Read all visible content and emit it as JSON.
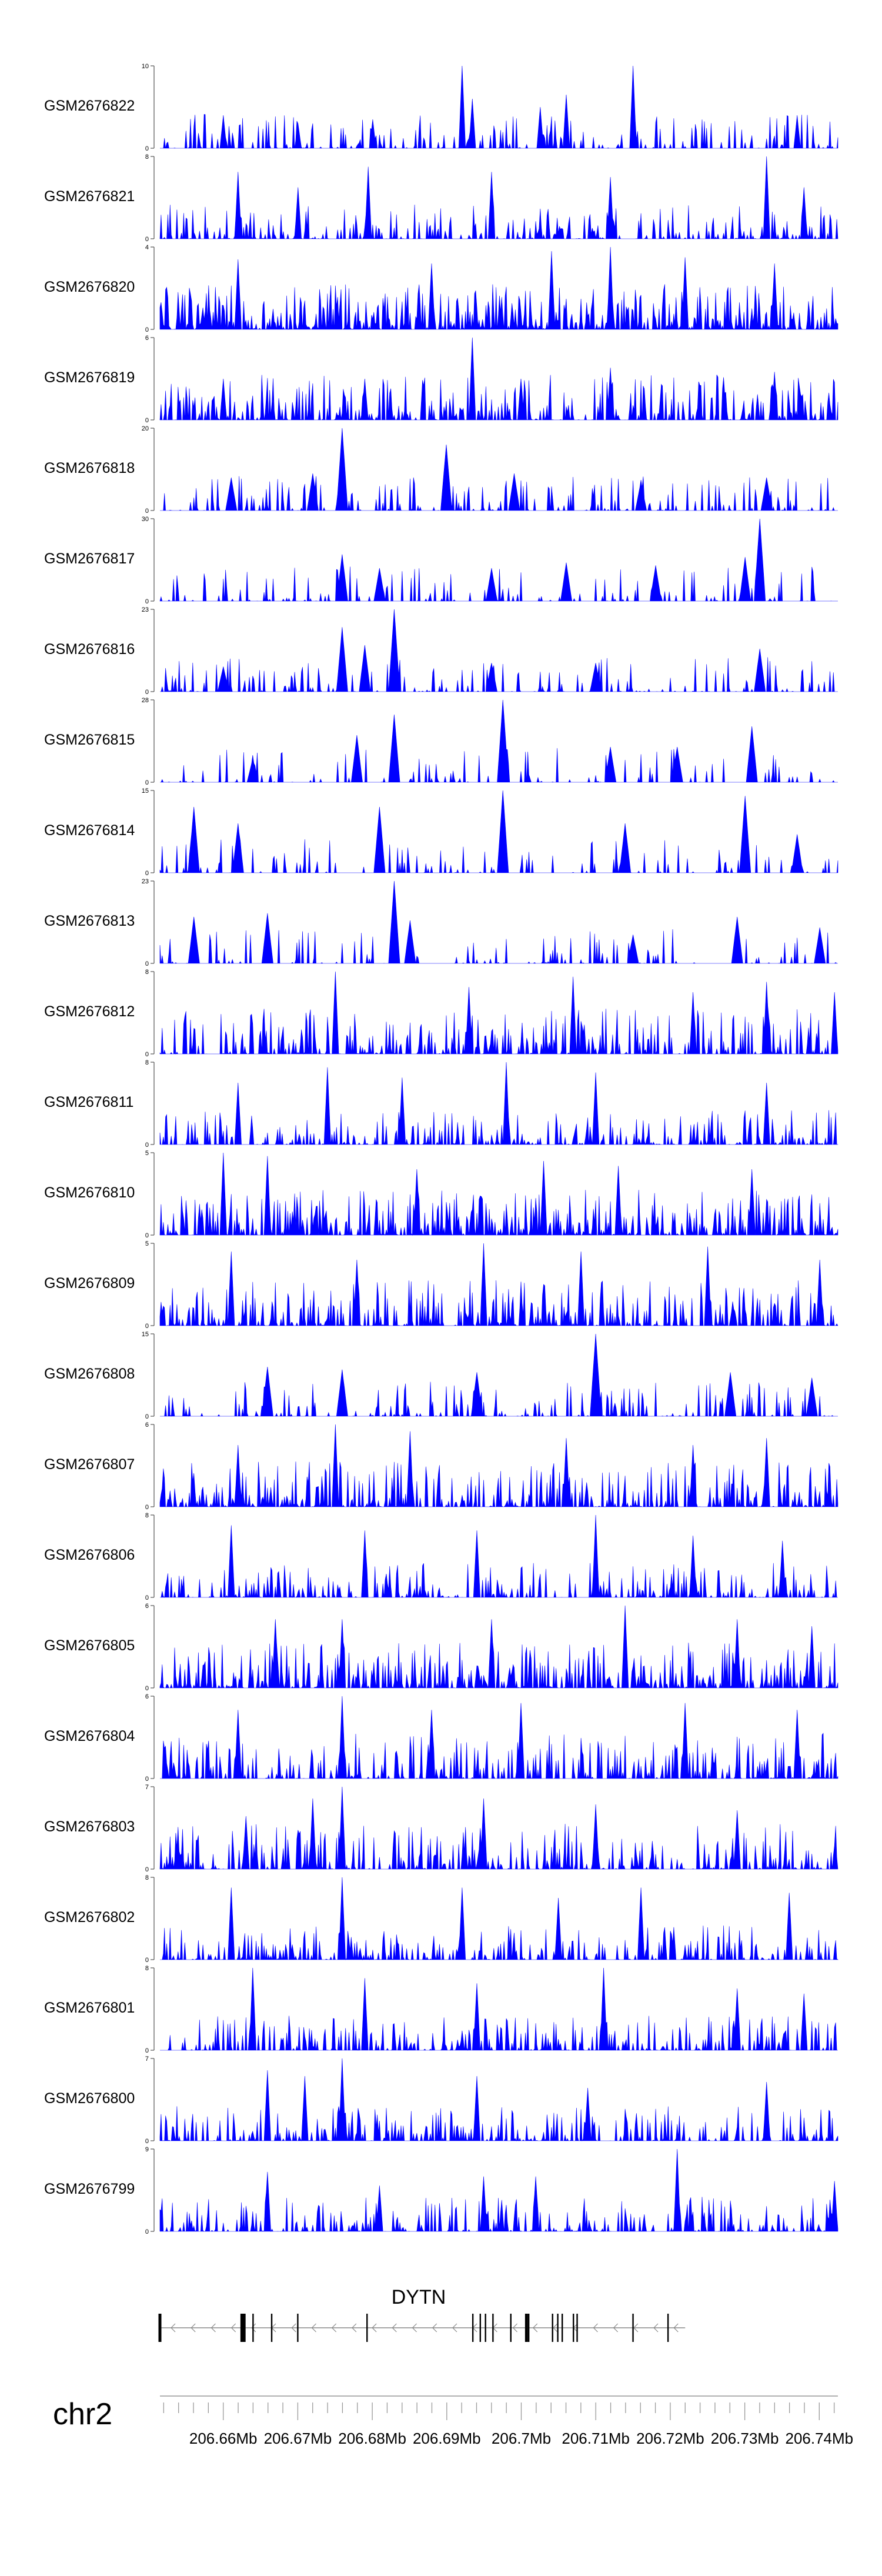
{
  "chart_data": {
    "type": "area",
    "title": "",
    "color": "#0000ff",
    "x_unit": "Mb",
    "xlim": [
      206.6515,
      206.7425
    ],
    "tracks": [
      {
        "name": "GSM2676822",
        "ymax": "10",
        "ymin": "0",
        "max": 10,
        "peaks": [
          [
            206.692,
            10
          ],
          [
            206.715,
            10
          ],
          [
            206.6935,
            6
          ],
          [
            206.706,
            6.5
          ],
          [
            206.7025,
            5
          ],
          [
            206.66,
            4
          ],
          [
            206.737,
            4
          ],
          [
            206.68,
            3.5
          ],
          [
            206.67,
            3
          ]
        ],
        "density": 0.35,
        "seed": 1
      },
      {
        "name": "GSM2676821",
        "ymax": "8",
        "ymin": "0",
        "max": 8,
        "peaks": [
          [
            206.733,
            8
          ],
          [
            206.6795,
            7
          ],
          [
            206.662,
            6.5
          ],
          [
            206.712,
            6
          ],
          [
            206.696,
            6.5
          ],
          [
            206.738,
            5
          ],
          [
            206.67,
            5
          ]
        ],
        "density": 0.45,
        "seed": 2
      },
      {
        "name": "GSM2676820",
        "ymax": "4",
        "ymin": "0",
        "max": 4,
        "peaks": [
          [
            206.712,
            4
          ],
          [
            206.704,
            3.8
          ],
          [
            206.722,
            3.5
          ],
          [
            206.662,
            3.4
          ],
          [
            206.688,
            3.2
          ],
          [
            206.734,
            3.2
          ]
        ],
        "density": 0.85,
        "seed": 3
      },
      {
        "name": "GSM2676819",
        "ymax": "6",
        "ymin": "0",
        "max": 6,
        "peaks": [
          [
            206.6935,
            6
          ],
          [
            206.712,
            3.8
          ],
          [
            206.734,
            3.5
          ],
          [
            206.66,
            3
          ],
          [
            206.679,
            3
          ],
          [
            206.7,
            3
          ]
        ],
        "density": 0.6,
        "seed": 4
      },
      {
        "name": "GSM2676818",
        "ymax": "20",
        "ymin": "0",
        "max": 20,
        "peaks": [
          [
            206.676,
            20
          ],
          [
            206.69,
            16
          ],
          [
            206.661,
            8
          ],
          [
            206.672,
            9
          ],
          [
            206.699,
            9
          ],
          [
            206.716,
            7
          ],
          [
            206.733,
            8
          ]
        ],
        "density": 0.3,
        "seed": 5
      },
      {
        "name": "GSM2676817",
        "ymax": "30",
        "ymin": "0",
        "max": 30,
        "peaks": [
          [
            206.732,
            30
          ],
          [
            206.73,
            16
          ],
          [
            206.676,
            17
          ],
          [
            206.696,
            12
          ],
          [
            206.681,
            12
          ],
          [
            206.706,
            14
          ],
          [
            206.718,
            13
          ]
        ],
        "density": 0.25,
        "seed": 6
      },
      {
        "name": "GSM2676816",
        "ymax": "23",
        "ymin": "0",
        "max": 23,
        "peaks": [
          [
            206.683,
            23
          ],
          [
            206.676,
            18
          ],
          [
            206.679,
            13
          ],
          [
            206.732,
            12
          ],
          [
            206.66,
            7
          ],
          [
            206.696,
            8
          ],
          [
            206.71,
            8
          ]
        ],
        "density": 0.3,
        "seed": 7
      },
      {
        "name": "GSM2676815",
        "ymax": "28",
        "ymin": "0",
        "max": 28,
        "peaks": [
          [
            206.6975,
            28
          ],
          [
            206.683,
            23
          ],
          [
            206.731,
            19
          ],
          [
            206.678,
            16
          ],
          [
            206.712,
            12
          ],
          [
            206.721,
            12
          ],
          [
            206.664,
            8
          ]
        ],
        "density": 0.2,
        "seed": 8
      },
      {
        "name": "GSM2676814",
        "ymax": "15",
        "ymin": "0",
        "max": 15,
        "peaks": [
          [
            206.6975,
            15
          ],
          [
            206.73,
            14
          ],
          [
            206.656,
            12
          ],
          [
            206.681,
            12
          ],
          [
            206.737,
            7
          ],
          [
            206.714,
            9
          ],
          [
            206.662,
            9
          ]
        ],
        "density": 0.25,
        "seed": 9
      },
      {
        "name": "GSM2676813",
        "ymax": "23",
        "ymin": "0",
        "max": 23,
        "peaks": [
          [
            206.683,
            23
          ],
          [
            206.666,
            14
          ],
          [
            206.656,
            13
          ],
          [
            206.685,
            12
          ],
          [
            206.729,
            13
          ],
          [
            206.74,
            10
          ],
          [
            206.715,
            8
          ]
        ],
        "density": 0.2,
        "seed": 10
      },
      {
        "name": "GSM2676812",
        "ymax": "8",
        "ymin": "0",
        "max": 8,
        "peaks": [
          [
            206.675,
            8
          ],
          [
            206.707,
            7.5
          ],
          [
            206.733,
            7
          ],
          [
            206.693,
            6.5
          ],
          [
            206.723,
            6
          ],
          [
            206.742,
            6
          ]
        ],
        "density": 0.55,
        "seed": 11
      },
      {
        "name": "GSM2676811",
        "ymax": "8",
        "ymin": "0",
        "max": 8,
        "peaks": [
          [
            206.698,
            8
          ],
          [
            206.674,
            7.5
          ],
          [
            206.71,
            7
          ],
          [
            206.684,
            6.5
          ],
          [
            206.662,
            6
          ],
          [
            206.733,
            6
          ]
        ],
        "density": 0.5,
        "seed": 12
      },
      {
        "name": "GSM2676810",
        "ymax": "5",
        "ymin": "0",
        "max": 5,
        "peaks": [
          [
            206.66,
            5
          ],
          [
            206.666,
            4.8
          ],
          [
            206.703,
            4.5
          ],
          [
            206.713,
            4.2
          ],
          [
            206.686,
            4
          ],
          [
            206.731,
            4
          ]
        ],
        "density": 0.65,
        "seed": 13
      },
      {
        "name": "GSM2676809",
        "ymax": "5",
        "ymin": "0",
        "max": 5,
        "peaks": [
          [
            206.695,
            5
          ],
          [
            206.725,
            4.8
          ],
          [
            206.661,
            4.5
          ],
          [
            206.708,
            4.5
          ],
          [
            206.678,
            4
          ],
          [
            206.74,
            4
          ]
        ],
        "density": 0.6,
        "seed": 14
      },
      {
        "name": "GSM2676808",
        "ymax": "15",
        "ymin": "0",
        "max": 15,
        "peaks": [
          [
            206.71,
            15
          ],
          [
            206.666,
            9
          ],
          [
            206.676,
            8.5
          ],
          [
            206.694,
            8
          ],
          [
            206.728,
            8
          ],
          [
            206.739,
            7
          ]
        ],
        "density": 0.25,
        "seed": 15
      },
      {
        "name": "GSM2676807",
        "ymax": "6",
        "ymin": "0",
        "max": 6,
        "peaks": [
          [
            206.675,
            6
          ],
          [
            206.685,
            5.5
          ],
          [
            206.706,
            5
          ],
          [
            206.733,
            5
          ],
          [
            206.662,
            4.5
          ],
          [
            206.723,
            4.5
          ]
        ],
        "density": 0.6,
        "seed": 16
      },
      {
        "name": "GSM2676806",
        "ymax": "8",
        "ymin": "0",
        "max": 8,
        "peaks": [
          [
            206.71,
            8
          ],
          [
            206.661,
            7
          ],
          [
            206.679,
            6.5
          ],
          [
            206.694,
            6.5
          ],
          [
            206.723,
            6
          ],
          [
            206.735,
            5.5
          ]
        ],
        "density": 0.45,
        "seed": 17
      },
      {
        "name": "GSM2676805",
        "ymax": "6",
        "ymin": "0",
        "max": 6,
        "peaks": [
          [
            206.714,
            6
          ],
          [
            206.667,
            5
          ],
          [
            206.676,
            5
          ],
          [
            206.696,
            5
          ],
          [
            206.729,
            5
          ],
          [
            206.739,
            4.5
          ]
        ],
        "density": 0.7,
        "seed": 18
      },
      {
        "name": "GSM2676804",
        "ymax": "6",
        "ymin": "0",
        "max": 6,
        "peaks": [
          [
            206.676,
            6
          ],
          [
            206.7,
            5.5
          ],
          [
            206.722,
            5.5
          ],
          [
            206.662,
            5
          ],
          [
            206.688,
            5
          ],
          [
            206.737,
            5
          ]
        ],
        "density": 0.55,
        "seed": 19
      },
      {
        "name": "GSM2676803",
        "ymax": "7",
        "ymin": "0",
        "max": 7,
        "peaks": [
          [
            206.676,
            7
          ],
          [
            206.672,
            6
          ],
          [
            206.695,
            6
          ],
          [
            206.71,
            5.5
          ],
          [
            206.729,
            5
          ],
          [
            206.663,
            4.5
          ]
        ],
        "density": 0.55,
        "seed": 20
      },
      {
        "name": "GSM2676802",
        "ymax": "8",
        "ymin": "0",
        "max": 8,
        "peaks": [
          [
            206.676,
            8
          ],
          [
            206.661,
            7
          ],
          [
            206.692,
            7
          ],
          [
            206.716,
            7
          ],
          [
            206.736,
            6.5
          ],
          [
            206.705,
            6
          ]
        ],
        "density": 0.45,
        "seed": 21
      },
      {
        "name": "GSM2676801",
        "ymax": "8",
        "ymin": "0",
        "max": 8,
        "peaks": [
          [
            206.664,
            8
          ],
          [
            206.711,
            8
          ],
          [
            206.679,
            7
          ],
          [
            206.694,
            6.5
          ],
          [
            206.729,
            6
          ],
          [
            206.738,
            5.5
          ]
        ],
        "density": 0.5,
        "seed": 22
      },
      {
        "name": "GSM2676800",
        "ymax": "7",
        "ymin": "0",
        "max": 7,
        "peaks": [
          [
            206.676,
            7
          ],
          [
            206.666,
            6
          ],
          [
            206.671,
            5.5
          ],
          [
            206.694,
            5.5
          ],
          [
            206.733,
            5
          ],
          [
            206.709,
            4.5
          ]
        ],
        "density": 0.5,
        "seed": 23
      },
      {
        "name": "GSM2676799",
        "ymax": "9",
        "ymin": "0",
        "max": 9,
        "peaks": [
          [
            206.721,
            9
          ],
          [
            206.666,
            6.5
          ],
          [
            206.695,
            6
          ],
          [
            206.702,
            6
          ],
          [
            206.742,
            5.5
          ],
          [
            206.681,
            5
          ]
        ],
        "density": 0.5,
        "seed": 24
      }
    ],
    "gene": {
      "name": "DYTN",
      "chrom": "chr2",
      "strand": "-",
      "start": 206.6515,
      "end": 206.722,
      "exons": [
        206.6515,
        206.6625,
        206.6628,
        206.664,
        206.6665,
        206.67,
        206.6793,
        206.6935,
        206.6945,
        206.6952,
        206.6962,
        206.6986,
        206.7007,
        206.701,
        206.7042,
        206.7049,
        206.7055,
        206.707,
        206.7075,
        206.715,
        206.7197
      ],
      "thick_exons": [
        206.6515,
        206.6625,
        206.6628,
        206.7007
      ]
    },
    "axis": {
      "ticks": [
        206.66,
        206.67,
        206.68,
        206.69,
        206.7,
        206.71,
        206.72,
        206.73,
        206.74
      ],
      "tick_labels": [
        "206.66Mb",
        "206.67Mb",
        "206.68Mb",
        "206.69Mb",
        "206.7Mb",
        "206.71Mb",
        "206.72Mb",
        "206.73Mb",
        "206.74Mb"
      ],
      "minor_step": 0.002
    }
  }
}
